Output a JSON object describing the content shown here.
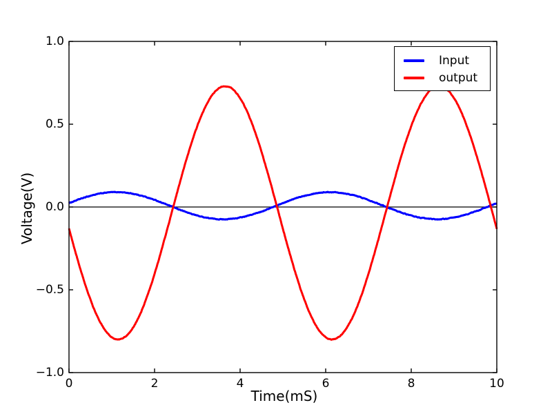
{
  "chart_data": {
    "type": "line",
    "title": "",
    "xlabel": "Time(mS)",
    "ylabel": "Voltage(V)",
    "xlim": [
      0,
      10
    ],
    "ylim": [
      -1.0,
      1.0
    ],
    "grid": false,
    "zero_line": true,
    "xticks": {
      "values": [
        0,
        2,
        4,
        6,
        8,
        10
      ],
      "labels": [
        "0",
        "2",
        "4",
        "6",
        "8",
        "10"
      ]
    },
    "yticks": {
      "values": [
        1.0,
        0.5,
        0.0,
        -0.5,
        -1.0
      ],
      "labels": [
        "1.0",
        "0.5",
        "0.0",
        "−0.5",
        "−1.0"
      ]
    },
    "legend": {
      "position": "upper right",
      "entries": [
        {
          "label": "Input",
          "color": "#0000ff"
        },
        {
          "label": "output",
          "color": "#ff0000"
        }
      ]
    },
    "series": [
      {
        "name": "Input",
        "color": "#0000ff",
        "model": {
          "type": "sine",
          "offset_v": 0.008,
          "amplitude_v": 0.082,
          "period_ms": 5.0,
          "phase_ms": 0.15
        },
        "noise_v": 0.004,
        "observed": {
          "peak_v": 0.09,
          "peak_t_ms": [
            1.1,
            6.1
          ],
          "trough_v": -0.07,
          "trough_t_ms": [
            3.6,
            8.6
          ],
          "zero_up_t_ms": [
            0.0,
            4.85,
            9.85
          ]
        }
      },
      {
        "name": "output",
        "color": "#ff0000",
        "model": {
          "type": "sine",
          "offset_v": -0.035,
          "amplitude_v": -0.765,
          "period_ms": 5.0,
          "phase_ms": 0.1
        },
        "noise_v": 0.004,
        "observed": {
          "start_v": -0.13,
          "peak_v": 0.73,
          "peak_t_ms": [
            3.65,
            8.65
          ],
          "trough_v": -0.8,
          "trough_t_ms": [
            1.15,
            6.15
          ],
          "zero_up_t_ms": [
            2.4,
            7.4
          ],
          "end_v": -0.13
        }
      }
    ]
  }
}
